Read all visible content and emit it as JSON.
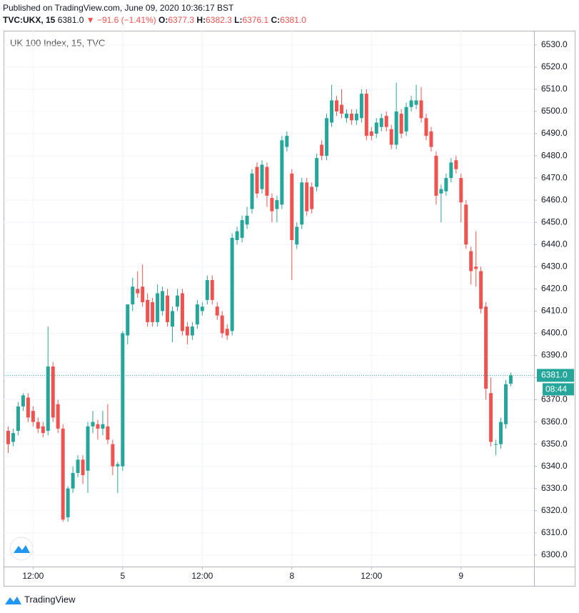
{
  "header": {
    "published": "Published on TradingView.com, June 09, 2020 10:36:17 BST",
    "symbol": "TVC:UKX, 15",
    "last": "6381.0",
    "change": "−91.6 (−1.41%)",
    "ohlc": [
      {
        "label": "O:",
        "value": "6377.3"
      },
      {
        "label": "H:",
        "value": "6382.3"
      },
      {
        "label": "L:",
        "value": "6376.1"
      },
      {
        "label": "C:",
        "value": "6381.0"
      }
    ]
  },
  "chart_data": {
    "type": "candlestick",
    "title": "UK 100 Index, 15, TVC",
    "up_color": "#26a69a",
    "down_color": "#ef5350",
    "grid": true,
    "ylim": [
      6294.8,
      6536.4
    ],
    "yticks": [
      {
        "value": 6300,
        "label": "6300.0"
      },
      {
        "value": 6310,
        "label": "6310.0"
      },
      {
        "value": 6320,
        "label": "6320.0"
      },
      {
        "value": 6330,
        "label": "6330.0"
      },
      {
        "value": 6340,
        "label": "6340.0"
      },
      {
        "value": 6350,
        "label": "6350.0"
      },
      {
        "value": 6360,
        "label": "6360.0"
      },
      {
        "value": 6370,
        "label": "6370.0"
      },
      {
        "value": 6380,
        "label": "6380.0"
      },
      {
        "value": 6390,
        "label": "6390.0"
      },
      {
        "value": 6400,
        "label": "6400.0"
      },
      {
        "value": 6410,
        "label": "6410.0"
      },
      {
        "value": 6420,
        "label": "6420.0"
      },
      {
        "value": 6430,
        "label": "6430.0"
      },
      {
        "value": 6440,
        "label": "6440.0"
      },
      {
        "value": 6450,
        "label": "6450.0"
      },
      {
        "value": 6460,
        "label": "6460.0"
      },
      {
        "value": 6470,
        "label": "6470.0"
      },
      {
        "value": 6480,
        "label": "6480.0"
      },
      {
        "value": 6490,
        "label": "6490.0"
      },
      {
        "value": 6500,
        "label": "6500.0"
      },
      {
        "value": 6510,
        "label": "6510.0"
      },
      {
        "value": 6520,
        "label": "6520.0"
      },
      {
        "value": 6530,
        "label": "6530.0"
      }
    ],
    "last_price_label": "6381.0",
    "countdown": "08:44",
    "categories": [
      null,
      null,
      null,
      null,
      null,
      "12:00",
      null,
      null,
      null,
      null,
      null,
      null,
      null,
      null,
      null,
      null,
      null,
      null,
      null,
      null,
      null,
      null,
      null,
      "5",
      null,
      null,
      null,
      null,
      null,
      null,
      null,
      null,
      null,
      null,
      null,
      null,
      null,
      null,
      null,
      "12:00",
      null,
      null,
      null,
      null,
      null,
      null,
      null,
      null,
      null,
      null,
      null,
      null,
      null,
      null,
      null,
      null,
      null,
      "8",
      null,
      null,
      null,
      null,
      null,
      null,
      null,
      null,
      null,
      null,
      null,
      null,
      null,
      null,
      null,
      "12:00",
      null,
      null,
      null,
      null,
      null,
      null,
      null,
      null,
      null,
      null,
      null,
      null,
      null,
      null,
      null,
      null,
      null,
      "9",
      null,
      null,
      null,
      null,
      null,
      null,
      null,
      null,
      null,
      null
    ],
    "open": [
      6356,
      6351,
      6356,
      6367,
      6371,
      6365,
      6360,
      6358,
      6356,
      6385,
      6368,
      6357,
      6317,
      6330,
      6337,
      6343,
      6338,
      6358,
      6359,
      6357,
      6358,
      6350,
      6340,
      6340,
      6399,
      6413,
      6420,
      6421,
      6415,
      6414,
      6405,
      6410,
      6417,
      6403,
      6412,
      6418,
      6403,
      6399,
      6404,
      6410,
      6415,
      6424,
      6412,
      6408,
      6402,
      6401,
      6442,
      6443,
      6449,
      6456,
      6475,
      6465,
      6475,
      6461,
      6456,
      6458,
      6484,
      6472,
      6440,
      6449,
      6468,
      6466,
      6466,
      6485,
      6480,
      6495,
      6505,
      6503,
      6497,
      6499,
      6496,
      6497,
      6508,
      6491,
      6490,
      6493,
      6498,
      6492,
      6485,
      6499,
      6491,
      6502,
      6503,
      6505,
      6497,
      6491,
      6480,
      6463,
      6464,
      6470,
      6478,
      6470,
      6458,
      6437,
      6430,
      6428,
      6412,
      6373,
      6350,
      6350,
      6359,
      6377.3
    ],
    "high": [
      6358,
      6357,
      6369,
      6373,
      6373,
      6367,
      6362,
      6360,
      6403,
      6387,
      6370,
      6359,
      6331,
      6340,
      6345,
      6345,
      6360,
      6365,
      6361,
      6365,
      6368,
      6352,
      6342,
      6401,
      6413,
      6425,
      6428,
      6431,
      6418,
      6416,
      6422,
      6421,
      6420,
      6412,
      6420,
      6420,
      6405,
      6405,
      6415,
      6414,
      6426,
      6426,
      6414,
      6410,
      6404,
      6445,
      6448,
      6453,
      6457,
      6474,
      6477,
      6478,
      6477,
      6463,
      6462,
      6489,
      6491,
      6474,
      6450,
      6470,
      6470,
      6468,
      6481,
      6487,
      6499,
      6512,
      6507,
      6510,
      6501,
      6501,
      6501,
      6510,
      6510,
      6493,
      6497,
      6499,
      6500,
      6494,
      6513,
      6501,
      6504,
      6507,
      6512,
      6511,
      6499,
      6493,
      6482,
      6467,
      6472,
      6479,
      6480,
      6472,
      6460,
      6439,
      6446,
      6430,
      6414,
      6380,
      6352,
      6362,
      6379,
      6382.3
    ],
    "low": [
      6346,
      6349,
      6354,
      6365,
      6360,
      6358,
      6355,
      6353,
      6354,
      6360,
      6355,
      6315,
      6315,
      6328,
      6335,
      6332,
      6328,
      6355,
      6352,
      6354,
      6350,
      6336,
      6328,
      6338,
      6395,
      6410,
      6416,
      6412,
      6403,
      6403,
      6403,
      6408,
      6403,
      6396,
      6410,
      6399,
      6395,
      6397,
      6402,
      6408,
      6413,
      6413,
      6406,
      6398,
      6397,
      6399,
      6440,
      6441,
      6447,
      6454,
      6461,
      6463,
      6457,
      6450,
      6450,
      6456,
      6482,
      6424,
      6438,
      6447,
      6453,
      6454,
      6464,
      6478,
      6478,
      6493,
      6498,
      6497,
      6495,
      6494,
      6494,
      6495,
      6487,
      6487,
      6488,
      6491,
      6491,
      6483,
      6483,
      6488,
      6489,
      6500,
      6501,
      6495,
      6487,
      6482,
      6458,
      6450,
      6462,
      6468,
      6472,
      6450,
      6438,
      6422,
      6421,
      6409,
      6370,
      6349,
      6345,
      6348,
      6357,
      6376.1
    ],
    "close": [
      6350,
      6355,
      6367,
      6372,
      6362,
      6360,
      6357,
      6355,
      6385,
      6362,
      6357,
      6316,
      6330,
      6337,
      6343,
      6336,
      6358,
      6360,
      6357,
      6359,
      6352,
      6340,
      6341,
      6400,
      6413,
      6421,
      6418,
      6414,
      6405,
      6405,
      6418,
      6419,
      6405,
      6410,
      6417,
      6401,
      6399,
      6403,
      6413,
      6412,
      6424,
      6415,
      6408,
      6400,
      6399,
      6443,
      6446,
      6451,
      6453,
      6472,
      6463,
      6476,
      6462,
      6455,
      6460,
      6487,
      6489,
      6442,
      6448,
      6468,
      6455,
      6456,
      6479,
      6480,
      6497,
      6505,
      6500,
      6499,
      6499,
      6496,
      6499,
      6508,
      6489,
      6489,
      6495,
      6497,
      6493,
      6485,
      6500,
      6490,
      6502,
      6505,
      6505,
      6497,
      6489,
      6484,
      6462,
      6465,
      6470,
      6477,
      6474,
      6459,
      6440,
      6428,
      6429,
      6411,
      6375,
      6351,
      6350,
      6360,
      6377,
      6381.0
    ]
  },
  "footer": {
    "brand": "TradingView"
  }
}
